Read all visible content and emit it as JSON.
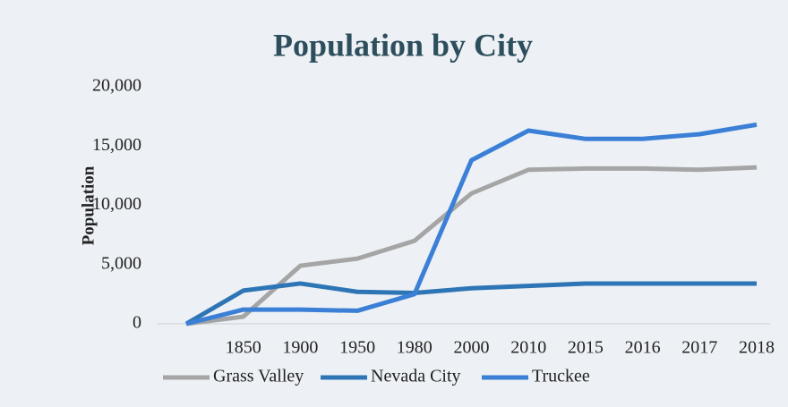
{
  "chart_data": {
    "type": "line",
    "title": "Population by City",
    "y_label": "Population",
    "categories": [
      null,
      "1850",
      "1900",
      "1950",
      "1980",
      "2000",
      "2010",
      "2015",
      "2016",
      "2017",
      "2018"
    ],
    "series": [
      {
        "name": "Grass Valley",
        "color": "#a5a5a5",
        "values": [
          0,
          600,
          4900,
          5500,
          7000,
          11000,
          13000,
          13100,
          13100,
          13000,
          13200
        ]
      },
      {
        "name": "Nevada City",
        "color": "#2e75b6",
        "values": [
          0,
          2800,
          3400,
          2700,
          2600,
          3000,
          3200,
          3400,
          3400,
          3400,
          3400
        ]
      },
      {
        "name": "Truckee",
        "color": "#3b80d6",
        "values": [
          0,
          1200,
          1200,
          1100,
          2500,
          13800,
          16300,
          15600,
          15600,
          16000,
          16800
        ]
      }
    ],
    "ylim": [
      0,
      20000
    ],
    "yticks": [
      0,
      {
        "value": 5000,
        "label": "5,000"
      },
      {
        "value": 10000,
        "label": "10,000"
      },
      {
        "value": 15000,
        "label": "15,000"
      },
      {
        "value": 20000,
        "label": "20,000"
      }
    ],
    "grid": false,
    "legend": "bottom"
  }
}
